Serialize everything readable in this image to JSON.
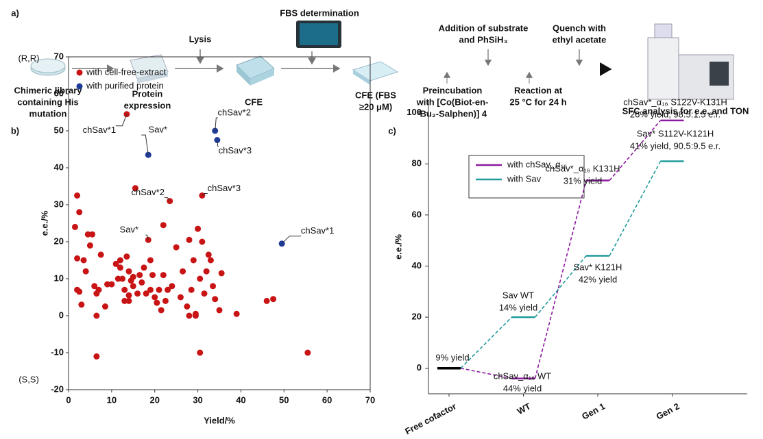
{
  "panel_a": {
    "label": "a)",
    "steps": [
      {
        "lines": [
          "Chimeric library",
          "containing His",
          "mutation"
        ]
      },
      {
        "lines": [
          "Protein",
          "expression"
        ]
      },
      {
        "lines": [
          "Lysis"
        ]
      },
      {
        "lines": [
          "CFE"
        ]
      },
      {
        "lines": [
          "FBS determination"
        ]
      },
      {
        "lines": [
          "CFE (FBS",
          "≥20 μM)"
        ]
      },
      {
        "lines": [
          "Addition of substrate",
          "and PhSiH₃"
        ]
      },
      {
        "lines": [
          "Quench with",
          "ethyl acetate"
        ]
      },
      {
        "lines": [
          "Preincubation",
          "with [Co(Biot-en-",
          "ᵗBu₂-Salphen)] 4"
        ]
      },
      {
        "lines": [
          "Reaction at",
          "25 °C for 24 h"
        ]
      },
      {
        "lines": [
          "SFC analysis for e.e. and TON"
        ]
      }
    ]
  },
  "chart_data": [
    {
      "type": "scatter",
      "panel_label": "b)",
      "x_label": "Yield/%",
      "y_label": "e.e./%",
      "end_labels": [
        "(R,R)",
        "(S,S)"
      ],
      "xlim": [
        0,
        70
      ],
      "ylim": [
        -20,
        70
      ],
      "xticks": [
        0,
        10,
        20,
        30,
        40,
        50,
        60,
        70
      ],
      "yticks": [
        -20,
        -10,
        0,
        10,
        20,
        30,
        40,
        50,
        60,
        70
      ],
      "legend": "upper left",
      "series": [
        {
          "name": "with cell-free-extract",
          "color": "#c81414",
          "x": [
            1.5,
            2,
            2,
            2.5,
            2.5,
            3,
            3.5,
            4,
            4.5,
            5,
            5.5,
            6,
            6.5,
            6.5,
            6.5,
            7,
            7.5,
            8.5,
            9,
            10,
            11,
            11.5,
            12,
            12,
            12.5,
            13,
            13,
            13.5,
            14,
            14,
            14,
            14.5,
            15,
            15,
            15.5,
            16,
            16.5,
            17,
            17.5,
            18,
            19,
            19,
            19.5,
            20,
            20.5,
            21,
            21.5,
            22,
            22,
            22.5,
            23,
            23.5,
            24,
            25,
            26,
            26.5,
            27.5,
            28,
            28,
            28.5,
            29,
            29.5,
            29.5,
            30,
            30.5,
            30.5,
            31,
            31,
            31.5,
            32,
            32.5,
            33,
            33.5,
            34,
            35,
            35.5,
            39,
            46,
            47.5,
            55.5,
            18.5,
            13.5,
            2
          ],
          "y": [
            24,
            32.5,
            15.5,
            28,
            6.5,
            3,
            15,
            12,
            22,
            19,
            22,
            8,
            6,
            -11,
            0,
            7,
            16.5,
            2.5,
            8.5,
            8.5,
            14,
            10,
            15,
            13,
            10,
            7,
            4,
            16,
            4,
            12,
            5.5,
            9.5,
            8,
            10.5,
            34.5,
            6,
            11,
            9,
            13,
            6,
            7,
            15,
            11,
            5,
            3.5,
            7,
            1.5,
            24.5,
            11,
            4,
            7,
            31,
            8,
            18.5,
            5,
            12,
            2.5,
            0,
            20.5,
            7,
            15,
            0.5,
            0,
            23.5,
            -10,
            10,
            32.5,
            20,
            6,
            12,
            16.5,
            15,
            8,
            4.5,
            1.5,
            11.5,
            0.5,
            4,
            4.5,
            -10,
            20.5,
            54.5,
            7
          ]
        },
        {
          "name": "with purified protein",
          "color": "#1f3c99",
          "x": [
            18.5,
            34,
            34.5,
            49.5
          ],
          "y": [
            43.5,
            50,
            47.5,
            19.5
          ]
        }
      ],
      "annotations": [
        {
          "text": "chSav*1",
          "x": 13.5,
          "y": 54.5
        },
        {
          "text": "Sav*",
          "x": 18.5,
          "y": 20.5
        },
        {
          "text": "chSav*2",
          "x": 23.5,
          "y": 31
        },
        {
          "text": "chSav*3",
          "x": 31,
          "y": 32.5
        },
        {
          "text": "Sav*",
          "x": 18.5,
          "y": 43.5
        },
        {
          "text": "chSav*2",
          "x": 34,
          "y": 50
        },
        {
          "text": "chSav*3",
          "x": 34.5,
          "y": 47.5
        },
        {
          "text": "chSav*1",
          "x": 49.5,
          "y": 19.5
        }
      ]
    },
    {
      "type": "step",
      "panel_label": "c)",
      "y_label": "e.e./%",
      "categories": [
        "Free cofactor",
        "WT",
        "Gen 1",
        "Gen 2"
      ],
      "ylim": [
        -10,
        105
      ],
      "yticks": [
        0,
        20,
        40,
        60,
        80,
        100
      ],
      "legend": "upper left",
      "base_color": "#000000",
      "series": [
        {
          "name": "with chSav_α₁₆",
          "color": "#8b1a9e",
          "values": [
            0,
            -4,
            73.5,
            97
          ]
        },
        {
          "name": "with Sav",
          "color": "#1e9a9a",
          "values": [
            0,
            20,
            44,
            81
          ]
        }
      ],
      "annotations": [
        {
          "lines": [
            "9% yield"
          ]
        },
        {
          "lines": [
            "chSav_α₁₆ WT",
            "44% yield"
          ]
        },
        {
          "lines": [
            "Sav WT",
            "14% yield"
          ]
        },
        {
          "lines": [
            "chSav*_α₁₆ K131H",
            "31% yield"
          ]
        },
        {
          "lines": [
            "Sav* K121H",
            "42% yield"
          ]
        },
        {
          "lines": [
            "chSav*_α₁₆ S122V-K131H",
            "26% yield, 98.5:1.5 e.r."
          ]
        },
        {
          "lines": [
            "Sav* S112V-K121H",
            "41% yield, 90.5:9.5 e.r."
          ]
        }
      ]
    }
  ]
}
